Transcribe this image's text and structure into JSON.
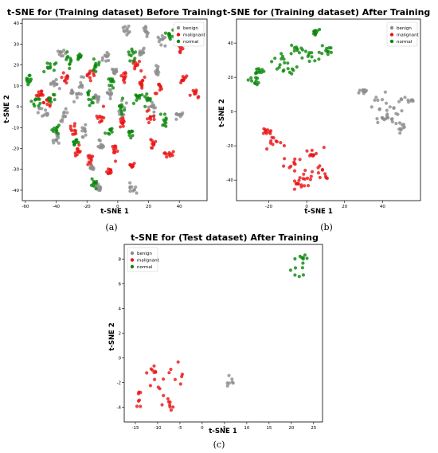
{
  "colors": {
    "benign": "#8c8c8c",
    "malignant": "#e81515",
    "normal": "#0a870a"
  },
  "chart_data": [
    {
      "type": "scatter",
      "title": "t-SNE for (Training dataset) Before Training",
      "xlabel": "t-SNE 1",
      "ylabel": "t-SNE 2",
      "caption": "(a)",
      "xlim": [
        -62,
        58
      ],
      "ylim": [
        -45,
        42
      ],
      "xticks": [
        -60,
        -40,
        -20,
        0,
        20,
        40
      ],
      "yticks": [
        -40,
        -30,
        -20,
        -10,
        0,
        10,
        20,
        30,
        40
      ],
      "legend": "top-right",
      "series": [
        {
          "name": "benign",
          "color_key": "benign",
          "clusters": [
            [
              6,
              37,
              2.5,
              3
            ],
            [
              18,
              36,
              2,
              2
            ],
            [
              29,
              32,
              2,
              2
            ],
            [
              -8,
              24,
              2,
              2
            ],
            [
              -42,
              11,
              3,
              3
            ],
            [
              -24,
              10,
              2,
              4
            ],
            [
              -28,
              6,
              3,
              3
            ],
            [
              -5,
              6,
              2,
              2
            ],
            [
              26,
              18,
              2,
              3
            ],
            [
              23,
              0,
              2.5,
              3
            ],
            [
              -48,
              -3,
              3,
              3
            ],
            [
              -35,
              -4,
              2.5,
              3
            ],
            [
              -14,
              4,
              2,
              2
            ],
            [
              3,
              -3,
              2,
              3
            ],
            [
              -22,
              -12,
              2,
              3
            ],
            [
              -10,
              -18,
              3,
              2
            ],
            [
              -40,
              -16,
              2,
              2
            ],
            [
              -17,
              -29,
              2,
              2
            ],
            [
              -12,
              -39,
              2,
              2
            ],
            [
              10,
              -40,
              3,
              2.5
            ],
            [
              40,
              -4,
              2,
              2
            ],
            [
              15,
              26,
              2,
              2
            ],
            [
              -2,
              17,
              2,
              2
            ],
            [
              -37,
              26,
              2,
              2
            ]
          ]
        },
        {
          "name": "malignant",
          "color_key": "malignant",
          "clusters": [
            [
              -34,
              13,
              2,
              4
            ],
            [
              -17,
              15,
              2,
              2
            ],
            [
              4,
              14,
              2,
              3
            ],
            [
              16,
              12,
              2,
              3
            ],
            [
              27,
              9,
              2,
              2
            ],
            [
              51,
              7,
              3,
              2
            ],
            [
              43,
              13,
              2,
              2
            ],
            [
              -50,
              6,
              2,
              2
            ],
            [
              -11,
              -5,
              2,
              4
            ],
            [
              -29,
              -11,
              2,
              3
            ],
            [
              -26,
              -22,
              2,
              2
            ],
            [
              -2,
              -20,
              3,
              3
            ],
            [
              4,
              -8,
              2,
              2
            ],
            [
              21,
              -4,
              2,
              3
            ],
            [
              35,
              -22,
              4,
              2
            ],
            [
              23,
              -18,
              2,
              2
            ],
            [
              -18,
              -25,
              2,
              2
            ],
            [
              -5,
              -31,
              2,
              2
            ],
            [
              9,
              -28,
              2,
              2
            ],
            [
              -46,
              2,
              2,
              2
            ],
            [
              41,
              28,
              2,
              2
            ],
            [
              12,
              20,
              2,
              2
            ]
          ]
        },
        {
          "name": "normal",
          "color_key": "normal",
          "clusters": [
            [
              -58,
              13,
              1.5,
              2
            ],
            [
              -44,
              19,
              3,
              2
            ],
            [
              -32,
              22,
              2,
              3
            ],
            [
              -14,
              20,
              2,
              3
            ],
            [
              -18,
              5,
              2,
              3
            ],
            [
              -43,
              4,
              3,
              2
            ],
            [
              -53,
              2,
              2,
              2
            ],
            [
              -25,
              24,
              2,
              2
            ],
            [
              10,
              25,
              2,
              2
            ],
            [
              -4,
              12,
              2,
              2
            ],
            [
              13,
              4,
              2,
              2
            ],
            [
              19,
              4,
              2,
              3
            ],
            [
              -5,
              -11,
              2,
              2
            ],
            [
              9,
              -13,
              2,
              3
            ],
            [
              34,
              34,
              2,
              2
            ],
            [
              30,
              -7,
              3,
              3
            ],
            [
              -27,
              -17,
              2,
              2
            ],
            [
              -15,
              -37,
              2,
              2
            ],
            [
              -40,
              -10,
              2,
              2
            ],
            [
              2,
              0,
              2,
              2
            ]
          ]
        }
      ]
    },
    {
      "type": "scatter",
      "title": "t-SNE for (Training dataset) After Training",
      "xlabel": "t-SNE 1",
      "ylabel": "t-SNE 2",
      "caption": "(b)",
      "xlim": [
        -37,
        60
      ],
      "ylim": [
        -52,
        54
      ],
      "xticks": [
        -20,
        0,
        20,
        40
      ],
      "yticks": [
        -40,
        -20,
        0,
        20,
        40
      ],
      "legend": "top-right",
      "series": [
        {
          "name": "benign",
          "color_key": "benign",
          "clusters": [
            [
              38,
              5,
              6,
              5
            ],
            [
              46,
              -2,
              5,
              4
            ],
            [
              50,
              -9,
              4,
              4
            ],
            [
              30,
              12,
              3,
              2
            ],
            [
              52,
              6,
              3,
              3
            ],
            [
              40,
              -4,
              4,
              3
            ]
          ]
        },
        {
          "name": "malignant",
          "color_key": "malignant",
          "clusters": [
            [
              -15,
              -20,
              6,
              5
            ],
            [
              -8,
              -30,
              5,
              5
            ],
            [
              0,
              -38,
              5,
              4
            ],
            [
              3,
              -24,
              3,
              3
            ],
            [
              -22,
              -12,
              3,
              2
            ],
            [
              -4,
              -42,
              3,
              3
            ],
            [
              8,
              -34,
              3,
              3
            ]
          ]
        },
        {
          "name": "normal",
          "color_key": "normal",
          "clusters": [
            [
              -25,
              24,
              4,
              2
            ],
            [
              -15,
              30,
              5,
              4
            ],
            [
              -5,
              37,
              4,
              3
            ],
            [
              3,
              32,
              4,
              3
            ],
            [
              -28,
              18,
              3,
              2
            ],
            [
              5,
              47,
              2,
              2
            ],
            [
              -10,
              25,
              4,
              3
            ],
            [
              12,
              36,
              3,
              2
            ]
          ]
        }
      ]
    },
    {
      "type": "scatter",
      "title": "t-SNE for (Test dataset) After Training",
      "xlabel": "t-SNE 1",
      "ylabel": "t-SNE 2",
      "caption": "(c)",
      "xlim": [
        -17.5,
        27
      ],
      "ylim": [
        -5.2,
        9.2
      ],
      "xticks": [
        -15,
        -10,
        -5,
        0,
        5,
        10,
        15,
        20,
        25
      ],
      "yticks": [
        -4,
        -2,
        0,
        2,
        4,
        6,
        8
      ],
      "legend": "top-left",
      "series": [
        {
          "name": "benign",
          "color_key": "benign",
          "clusters": [
            [
              6,
              -2,
              0.6,
              0.55
            ]
          ]
        },
        {
          "name": "malignant",
          "color_key": "malignant",
          "clusters": [
            [
              -9,
              -2.4,
              3.5,
              1.6
            ],
            [
              -14,
              -3.3,
              1.2,
              1.2
            ],
            [
              -11,
              -1,
              1.5,
              0.6
            ],
            [
              -8,
              -4,
              1.5,
              0.5
            ],
            [
              -6,
              -1.6,
              1.5,
              0.8
            ]
          ]
        },
        {
          "name": "normal",
          "color_key": "normal",
          "clusters": [
            [
              22,
              7.2,
              1.7,
              1.0
            ],
            [
              23,
              8,
              1,
              0.4
            ]
          ]
        }
      ]
    }
  ]
}
